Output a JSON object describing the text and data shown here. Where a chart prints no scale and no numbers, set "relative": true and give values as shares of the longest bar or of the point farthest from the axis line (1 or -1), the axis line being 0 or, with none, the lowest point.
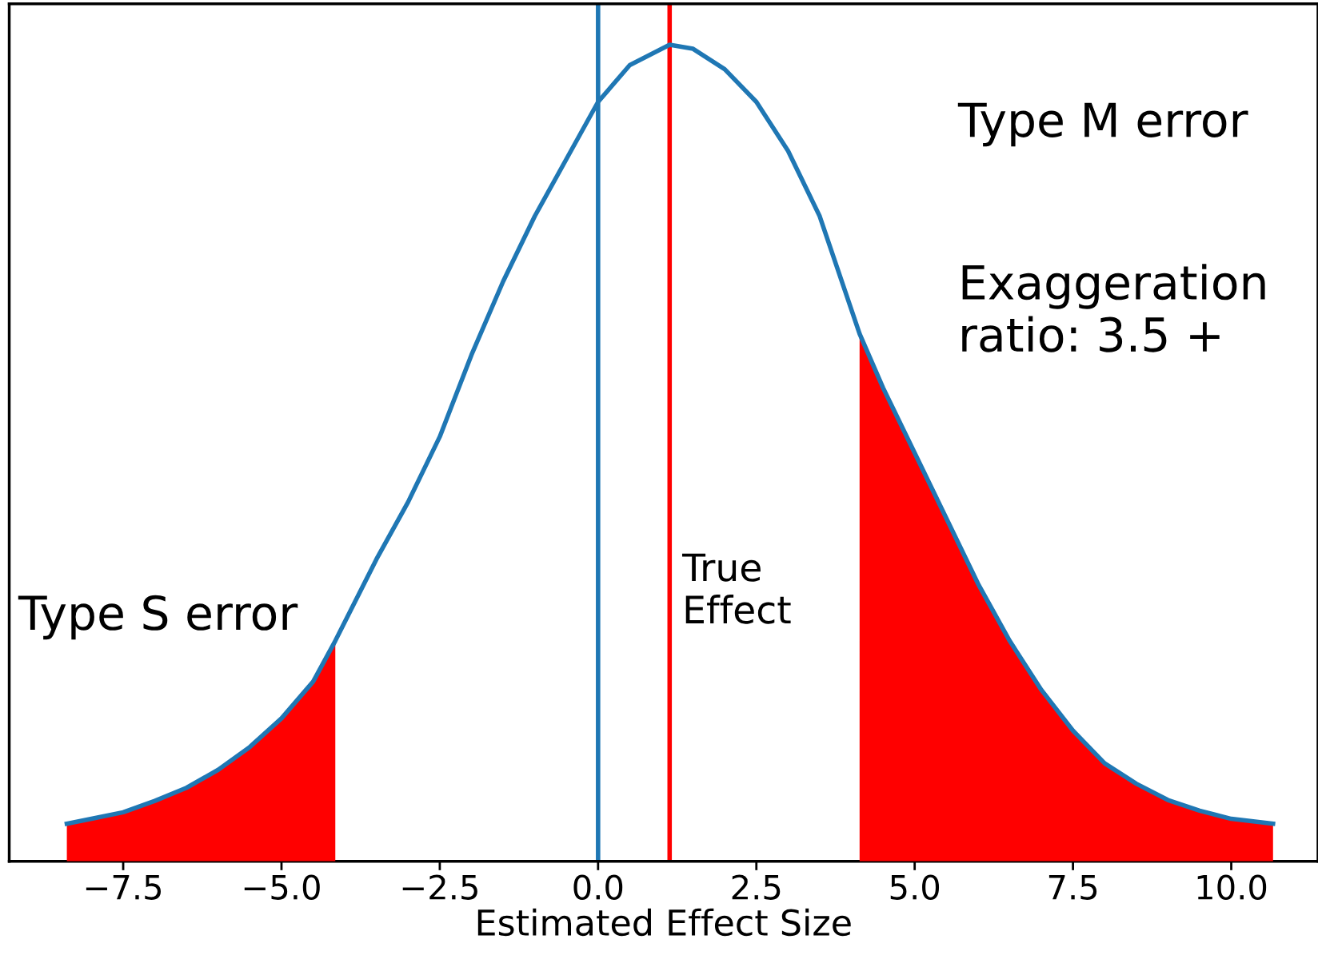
{
  "chart_data": {
    "type": "line",
    "relative": true,
    "xlabel": "Estimated Effect Size",
    "xlim": [
      -9.3,
      11.37
    ],
    "xticks": [
      {
        "value": -7.5,
        "label": "−7.5"
      },
      {
        "value": -5.0,
        "label": "−5.0"
      },
      {
        "value": -2.5,
        "label": "−2.5"
      },
      {
        "value": 0.0,
        "label": "0.0"
      },
      {
        "value": 2.5,
        "label": "2.5"
      },
      {
        "value": 5.0,
        "label": "5.0"
      },
      {
        "value": 7.5,
        "label": "7.5"
      },
      {
        "value": 10.0,
        "label": "10.0"
      }
    ],
    "tick_labels": "x",
    "grid": false,
    "series": [
      {
        "type": "area",
        "color": "#ff0000",
        "x": [
          -8.39,
          -8,
          -7.5,
          -7,
          -6.5,
          -6,
          -5.5,
          -5,
          -4.5,
          -4.15
        ],
        "values": [
          0.046,
          0.052,
          0.06,
          0.074,
          0.09,
          0.112,
          0.14,
          0.175,
          0.22,
          0.27
        ]
      },
      {
        "type": "area",
        "color": "#ff0000",
        "x": [
          4.13,
          4.5,
          5,
          5.5,
          6,
          6.5,
          7,
          7.5,
          8,
          8.5,
          9,
          9.5,
          10,
          10.66
        ],
        "values": [
          0.646,
          0.58,
          0.5,
          0.42,
          0.34,
          0.27,
          0.21,
          0.16,
          0.12,
          0.095,
          0.075,
          0.062,
          0.052,
          0.046
        ]
      },
      {
        "type": "line",
        "color": "#1f77b4",
        "x": [
          -8.39,
          -8,
          -7.5,
          -7,
          -6.5,
          -6,
          -5.5,
          -5,
          -4.5,
          -4.15,
          -3.5,
          -3,
          -2.5,
          -2,
          -1.5,
          -1,
          -0.5,
          0,
          0.5,
          1.13,
          1.5,
          2,
          2.5,
          3,
          3.5,
          4.13,
          4.5,
          5,
          5.5,
          6,
          6.5,
          7,
          7.5,
          8,
          8.5,
          9,
          9.5,
          10,
          10.66
        ],
        "values": [
          0.046,
          0.052,
          0.06,
          0.074,
          0.09,
          0.112,
          0.14,
          0.175,
          0.22,
          0.27,
          0.37,
          0.44,
          0.52,
          0.62,
          0.71,
          0.79,
          0.86,
          0.93,
          0.975,
          1.0,
          0.995,
          0.97,
          0.93,
          0.87,
          0.79,
          0.646,
          0.58,
          0.5,
          0.42,
          0.34,
          0.27,
          0.21,
          0.16,
          0.12,
          0.095,
          0.075,
          0.062,
          0.052,
          0.046
        ]
      }
    ],
    "ref_lines": [
      {
        "axis": "x",
        "value": 0.0,
        "color": "#1f77b4"
      },
      {
        "axis": "x",
        "value": 1.13,
        "color": "#ff0000",
        "label": "True\nEffect"
      }
    ],
    "annotations": [
      "Type M error",
      "Exaggeration\nratio: 3.5 +",
      "Type S error"
    ]
  }
}
